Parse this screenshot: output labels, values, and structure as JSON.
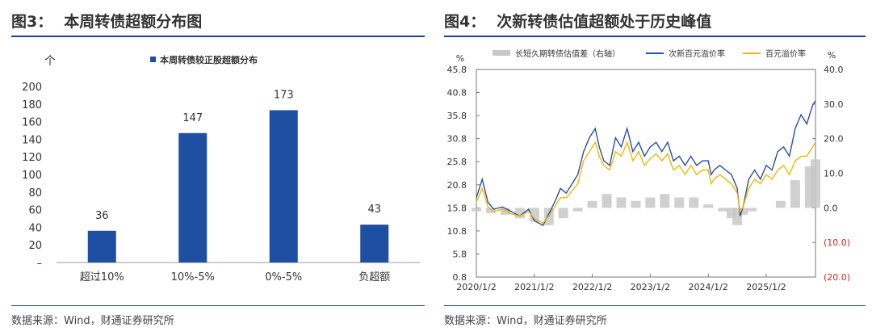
{
  "left": {
    "fig_no": "图3：",
    "title": "本周转债超额分布图",
    "source": "数据来源：Wind，财通证券研究所",
    "chart_data": {
      "type": "bar",
      "title": "本周转债超额分布图",
      "ylabel": "个",
      "legend": "本周转债较正股超额分布",
      "categories": [
        "超过10%",
        "10%-5%",
        "0%-5%",
        "负超额"
      ],
      "values": [
        36,
        147,
        173,
        43
      ],
      "ylim": [
        0,
        200
      ],
      "yticks": [
        200,
        180,
        160,
        140,
        120,
        100,
        80,
        60,
        40,
        20,
        "–"
      ],
      "color": "#1f4fa3"
    }
  },
  "right": {
    "fig_no": "图4：",
    "title": "次新转债估值超额处于历史峰值",
    "source": "数据来源：Wind，财通证券研究所",
    "chart_data": {
      "type": "line",
      "title": "次新转债估值超额处于历史峰值",
      "left_unit": "%",
      "right_unit": "%",
      "y_left_range": [
        0.8,
        45.8
      ],
      "y_right_range": [
        -20,
        40
      ],
      "y_left_ticks": [
        "45.8",
        "40.8",
        "35.8",
        "30.8",
        "25.8",
        "20.8",
        "15.8",
        "10.8",
        "5.8",
        "0.8"
      ],
      "y_right_ticks": [
        "40.0",
        "30.0",
        "20.0",
        "10.0",
        "0.0",
        "(10.0)",
        "(20.0)"
      ],
      "x_ticks": [
        "2020/1/2",
        "2021/1/2",
        "2022/1/2",
        "2023/1/2",
        "2024/1/2",
        "2025/1/2"
      ],
      "x_range": [
        2020.0,
        2025.85
      ],
      "series": [
        {
          "name": "长短久期转债估值差（右轴）",
          "kind": "bar",
          "axis": "right",
          "color": "#c8c8c8",
          "x": [
            2020.0,
            2020.25,
            2020.5,
            2020.75,
            2021.0,
            2021.25,
            2021.5,
            2021.75,
            2022.0,
            2022.25,
            2022.5,
            2022.75,
            2023.0,
            2023.25,
            2023.5,
            2023.75,
            2024.0,
            2024.25,
            2024.4,
            2024.5,
            2024.6,
            2024.75,
            2025.0,
            2025.25,
            2025.5,
            2025.75,
            2025.85
          ],
          "values": [
            -1,
            -1.5,
            -2,
            -3,
            -4,
            -5,
            -3,
            -1,
            2,
            4,
            3,
            2,
            3,
            4,
            3,
            3,
            1,
            -1,
            -3,
            -5,
            -2,
            -1,
            0,
            2,
            8,
            12,
            14
          ]
        },
        {
          "name": "次新百元溢价率",
          "kind": "line",
          "axis": "left",
          "color": "#2a4fa8",
          "x": [
            2020.0,
            2020.1,
            2020.2,
            2020.3,
            2020.45,
            2020.6,
            2020.75,
            2020.9,
            2021.0,
            2021.15,
            2021.25,
            2021.35,
            2021.45,
            2021.55,
            2021.65,
            2021.75,
            2021.85,
            2021.95,
            2022.05,
            2022.12,
            2022.2,
            2022.3,
            2022.4,
            2022.5,
            2022.6,
            2022.7,
            2022.8,
            2022.9,
            2023.0,
            2023.1,
            2023.2,
            2023.3,
            2023.4,
            2023.5,
            2023.6,
            2023.7,
            2023.8,
            2023.9,
            2024.0,
            2024.05,
            2024.1,
            2024.2,
            2024.3,
            2024.4,
            2024.5,
            2024.55,
            2024.6,
            2024.7,
            2024.8,
            2024.9,
            2025.0,
            2025.1,
            2025.2,
            2025.3,
            2025.4,
            2025.5,
            2025.6,
            2025.7,
            2025.8,
            2025.85
          ],
          "values": [
            18,
            22,
            17,
            15.5,
            16,
            15,
            14,
            15.5,
            13,
            12,
            14.5,
            17,
            20,
            19,
            21,
            23,
            28,
            31,
            33,
            29,
            26,
            25,
            31,
            29,
            33,
            28,
            30,
            27,
            29,
            30,
            28,
            30,
            26,
            27,
            25,
            27,
            25,
            26,
            26,
            23,
            24,
            25,
            24,
            23,
            20,
            14,
            16,
            22,
            24,
            22,
            25,
            24,
            28,
            29,
            27,
            33,
            36,
            34,
            38,
            39
          ]
        },
        {
          "name": "百元溢价率",
          "kind": "line",
          "axis": "left",
          "color": "#f2b705",
          "x": [
            2020.0,
            2020.1,
            2020.2,
            2020.3,
            2020.45,
            2020.6,
            2020.75,
            2020.9,
            2021.0,
            2021.15,
            2021.25,
            2021.35,
            2021.45,
            2021.55,
            2021.65,
            2021.75,
            2021.85,
            2021.95,
            2022.05,
            2022.12,
            2022.2,
            2022.3,
            2022.4,
            2022.5,
            2022.6,
            2022.7,
            2022.8,
            2022.9,
            2023.0,
            2023.1,
            2023.2,
            2023.3,
            2023.4,
            2023.5,
            2023.6,
            2023.7,
            2023.8,
            2023.9,
            2024.0,
            2024.05,
            2024.1,
            2024.2,
            2024.3,
            2024.4,
            2024.5,
            2024.55,
            2024.6,
            2024.7,
            2024.8,
            2024.9,
            2025.0,
            2025.1,
            2025.2,
            2025.3,
            2025.4,
            2025.5,
            2025.6,
            2025.7,
            2025.8,
            2025.85
          ],
          "values": [
            17,
            20,
            16,
            15,
            15.5,
            14.5,
            14,
            15,
            13.5,
            12.5,
            14,
            16,
            18,
            18,
            19.5,
            21,
            26,
            28,
            30,
            27,
            25,
            24,
            28,
            27,
            30,
            26,
            28,
            25,
            26.5,
            27.5,
            26,
            27.5,
            24,
            25,
            23,
            25,
            23,
            24,
            24,
            21,
            22,
            23,
            22,
            21,
            19,
            15,
            16,
            20,
            22,
            21,
            23,
            22,
            24,
            25,
            23,
            26,
            27,
            27,
            29,
            30
          ]
        }
      ]
    }
  }
}
